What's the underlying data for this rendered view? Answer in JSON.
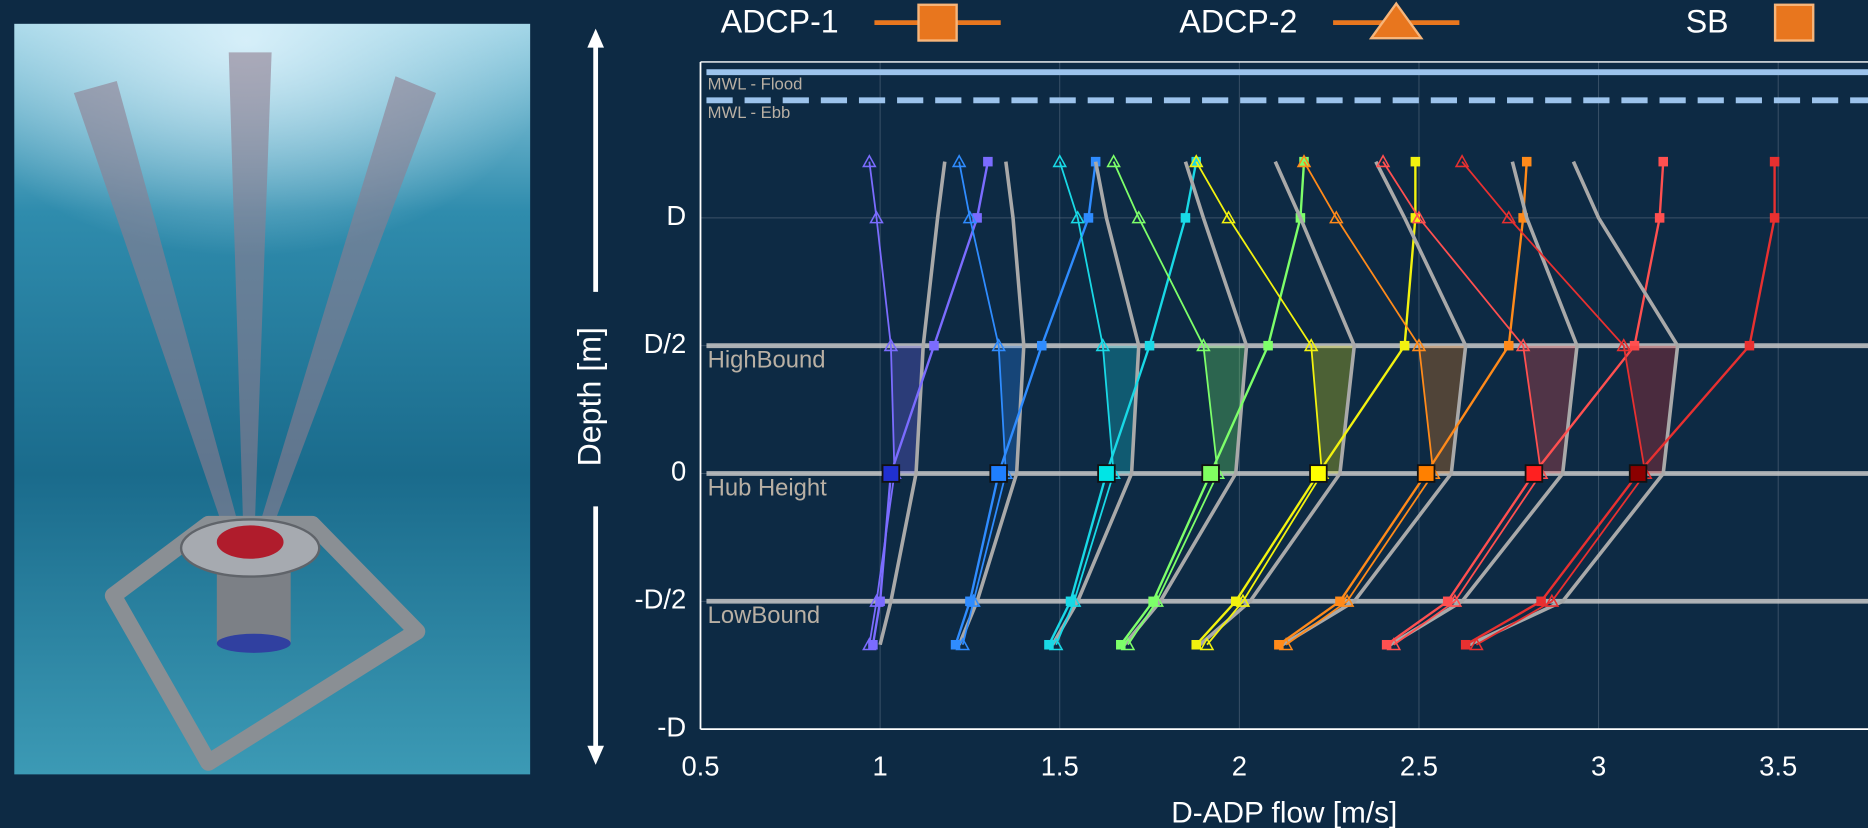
{
  "chart_data": {
    "type": "profile",
    "x_label": "D-ADP flow [m/s]",
    "y_label": "Depth [m]",
    "xlim": [
      0.5,
      3.75
    ],
    "ylim": [
      -1,
      1.61
    ],
    "xticks": [
      0.5,
      1,
      1.5,
      2,
      2.5,
      3,
      3.5
    ],
    "yticks": [
      {
        "value": -1,
        "label": "-D"
      },
      {
        "value": -0.5,
        "label": "-D/2"
      },
      0,
      {
        "value": 0.5,
        "label": "D/2"
      },
      {
        "value": 1,
        "label": "D"
      }
    ],
    "grid": true,
    "legend": [
      {
        "name": "ADCP-1",
        "marker": "square"
      },
      {
        "name": "ADCP-2",
        "marker": "triangle"
      },
      {
        "name": "SB",
        "marker": "square"
      }
    ],
    "legend_color": "#e8761e",
    "reference_lines": [
      {
        "label": "MWL - Flood",
        "value": 1.57,
        "style": "solid",
        "color": "#9cc3ec"
      },
      {
        "label": "MWL - Ebb",
        "value": 1.46,
        "style": "dashed",
        "color": "#9cc3ec"
      },
      {
        "label": "HighBound",
        "value": 0.5,
        "style": "solid",
        "color": "#c8c8c8"
      },
      {
        "label": "Hub Height",
        "value": 0,
        "style": "solid",
        "color": "#c8c8c8"
      },
      {
        "label": "LowBound",
        "value": -0.5,
        "style": "solid",
        "color": "#c8c8c8"
      }
    ],
    "depths": [
      -0.67,
      -0.5,
      0,
      0.5,
      1,
      1.22
    ],
    "sb_color": "#a9a9a9",
    "profiles": [
      {
        "color": "#7b6cff",
        "hub_color": "#2030d0",
        "hub": 1.03,
        "adcp1": [
          0.98,
          1.0,
          1.03,
          1.15,
          1.27,
          1.3
        ],
        "adcp2": [
          0.97,
          0.99,
          1.04,
          1.03,
          0.99,
          0.97
        ],
        "sb": [
          1.0,
          1.03,
          1.1,
          1.12,
          1.16,
          1.18
        ]
      },
      {
        "color": "#2f8cff",
        "hub_color": "#1f7fff",
        "hub": 1.33,
        "adcp1": [
          1.21,
          1.25,
          1.33,
          1.45,
          1.58,
          1.6
        ],
        "adcp2": [
          1.23,
          1.26,
          1.35,
          1.33,
          1.25,
          1.22
        ],
        "sb": [
          1.22,
          1.27,
          1.38,
          1.4,
          1.37,
          1.35
        ]
      },
      {
        "color": "#19d9e6",
        "hub_color": "#00e5e5",
        "hub": 1.63,
        "adcp1": [
          1.47,
          1.53,
          1.63,
          1.75,
          1.85,
          1.88
        ],
        "adcp2": [
          1.49,
          1.54,
          1.65,
          1.62,
          1.55,
          1.5
        ],
        "sb": [
          1.48,
          1.55,
          1.7,
          1.72,
          1.63,
          1.6
        ]
      },
      {
        "color": "#7dff6a",
        "hub_color": "#80ff60",
        "hub": 1.92,
        "adcp1": [
          1.67,
          1.76,
          1.92,
          2.08,
          2.17,
          2.18
        ],
        "adcp2": [
          1.69,
          1.77,
          1.94,
          1.9,
          1.72,
          1.65
        ],
        "sb": [
          1.68,
          1.78,
          1.99,
          2.02,
          1.9,
          1.85
        ]
      },
      {
        "color": "#f2f20f",
        "hub_color": "#ffff00",
        "hub": 2.22,
        "adcp1": [
          1.88,
          1.99,
          2.22,
          2.46,
          2.49,
          2.49
        ],
        "adcp2": [
          1.91,
          2.01,
          2.23,
          2.2,
          1.97,
          1.88
        ],
        "sb": [
          1.89,
          2.03,
          2.28,
          2.32,
          2.17,
          2.1
        ]
      },
      {
        "color": "#ff8a1a",
        "hub_color": "#ff8000",
        "hub": 2.52,
        "adcp1": [
          2.11,
          2.28,
          2.52,
          2.75,
          2.79,
          2.8
        ],
        "adcp2": [
          2.13,
          2.3,
          2.54,
          2.5,
          2.27,
          2.18
        ],
        "sb": [
          2.12,
          2.32,
          2.59,
          2.63,
          2.46,
          2.38
        ]
      },
      {
        "color": "#ff5050",
        "hub_color": "#ff2020",
        "hub": 2.82,
        "adcp1": [
          2.41,
          2.58,
          2.82,
          3.1,
          3.17,
          3.18
        ],
        "adcp2": [
          2.43,
          2.6,
          2.84,
          2.79,
          2.5,
          2.4
        ],
        "sb": [
          2.42,
          2.62,
          2.9,
          2.94,
          2.8,
          2.76
        ]
      },
      {
        "color": "#e83030",
        "hub_color": "#8b0000",
        "hub": 3.11,
        "adcp1": [
          2.63,
          2.84,
          3.11,
          3.42,
          3.49,
          3.49
        ],
        "adcp2": [
          2.66,
          2.87,
          3.13,
          3.07,
          2.75,
          2.62
        ],
        "sb": [
          2.64,
          2.9,
          3.18,
          3.22,
          3.0,
          2.93
        ]
      }
    ]
  }
}
